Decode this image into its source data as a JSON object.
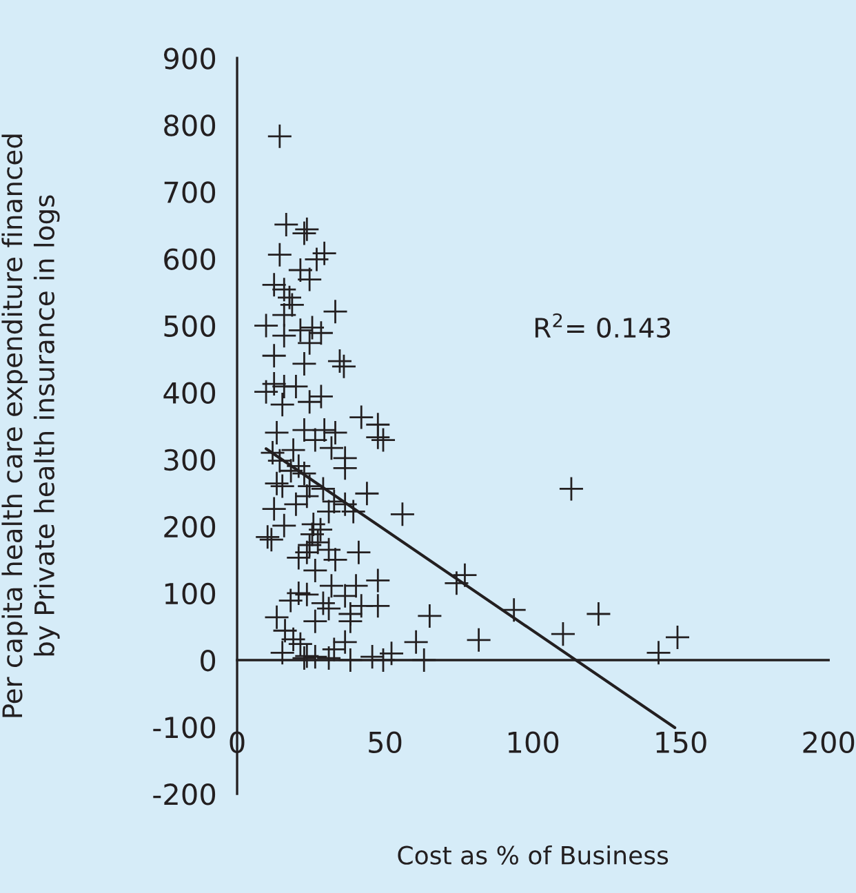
{
  "chart_data": {
    "type": "scatter",
    "xlabel": "Cost as % of Business",
    "ylabel": "Per capita health care expenditure financed by Private health insurance in logs",
    "xlim": [
      0,
      200
    ],
    "xticks": [
      0,
      50,
      100,
      150,
      200
    ],
    "ylim": [
      -200,
      900
    ],
    "yticks": [
      -200,
      -100,
      0,
      100,
      200,
      300,
      400,
      500,
      600,
      700,
      800,
      900
    ],
    "grid": false,
    "annotations": [
      "R$^{2}$= 0.143"
    ],
    "series": [
      {
        "color": "#231f20",
        "marker": "cross",
        "x": [
          14.4,
          16.6,
          23.6,
          22.7,
          14.4,
          29.5,
          26.9,
          21.4,
          24.5,
          12.5,
          15.9,
          17.7,
          18.6,
          15.9,
          9.8,
          33.2,
          21.4,
          25.4,
          28.4,
          15.9,
          24.5,
          12.5,
          22.7,
          34.7,
          36.1,
          12.5,
          15.9,
          19.9,
          9.8,
          28.4,
          24.5,
          15.3,
          42,
          47.6,
          49.4,
          47.6,
          13.4,
          22.7,
          29.5,
          33.2,
          26.4,
          31.9,
          36.5,
          19.0,
          12,
          14.4,
          20.8,
          36.5,
          18.2,
          22.7,
          13.4,
          15.3,
          24.5,
          29.1,
          43.9,
          23.6,
          32.8,
          19.9,
          36.5,
          39.3,
          55.9,
          12.5,
          31,
          15.9,
          25.8,
          28.2,
          10.3,
          11.6,
          25.4,
          24.5,
          27.3,
          23.6,
          31,
          41.1,
          20.8,
          33.2,
          26.4,
          77,
          74.2,
          47.6,
          40.2,
          31.9,
          36.5,
          20.8,
          23.6,
          18.1,
          29.1,
          47.6,
          42,
          31,
          93.6,
          122.2,
          65.1,
          38.3,
          13.4,
          26.4,
          38.3,
          16.2,
          110.2,
          148.9,
          81.7,
          19,
          60.5,
          36.5,
          21.4,
          32.8,
          15.3,
          142.5,
          52.2,
          23.6,
          26.4,
          31,
          45.7,
          38.3,
          63.2,
          49.4,
          113,
          22.7
        ],
        "values": [
          783,
          651,
          644,
          638,
          606,
          608,
          599,
          583,
          569,
          561,
          554,
          542,
          531,
          516,
          500,
          521,
          493,
          497,
          489,
          485,
          474,
          455,
          443,
          447,
          439,
          413,
          409,
          409,
          401,
          394,
          386,
          382,
          363,
          352,
          329,
          333,
          340,
          344,
          344,
          340,
          329,
          317,
          302,
          314,
          310,
          298,
          290,
          287,
          283,
          279,
          264,
          260,
          260,
          256,
          249,
          245,
          237,
          233,
          233,
          222,
          218,
          226,
          222,
          201,
          203,
          195,
          184,
          180,
          188,
          172,
          176,
          161,
          165,
          161,
          153,
          150,
          134,
          127,
          115,
          119,
          111,
          111,
          96,
          100,
          98,
          89,
          85,
          81,
          81,
          77,
          75,
          69,
          66,
          69,
          64,
          58,
          58,
          44,
          39,
          34,
          30,
          31,
          27,
          27,
          24,
          16,
          11,
          11,
          10,
          6,
          5,
          3,
          5,
          0,
          0,
          0,
          256,
          3
        ]
      },
      {
        "type": "line",
        "color": "#231f20",
        "x": [
          9.8,
          148
        ],
        "values": [
          316,
          -101
        ]
      }
    ]
  }
}
